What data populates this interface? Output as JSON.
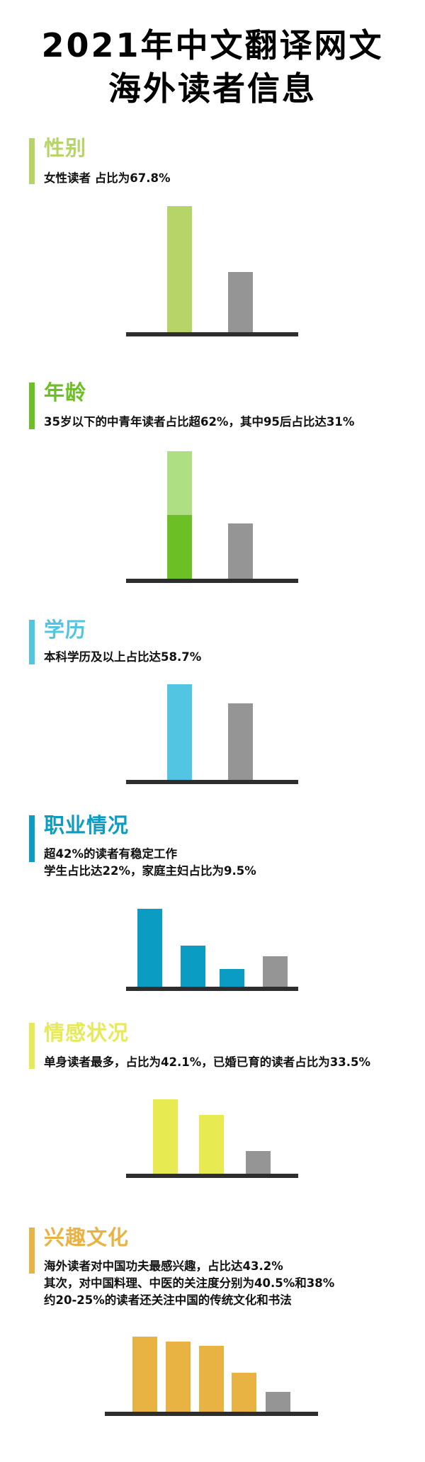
{
  "title": {
    "line1": "2021年中文翻译网文",
    "line2": "海外读者信息"
  },
  "colors": {
    "gray": "#959595",
    "baseline": "#2e2e2e"
  },
  "sections": [
    {
      "heading": "性别",
      "color": "#b6d468",
      "lines": [
        "女性读者 占比为67.8%"
      ]
    },
    {
      "heading": "年龄",
      "color": "#6cbf24",
      "lines": [
        "35岁以下的中青年读者占比超62%，其中95后占比达31%"
      ]
    },
    {
      "heading": "学历",
      "color": "#52c5e2",
      "lines": [
        "本科学历及以上占比达58.7%"
      ]
    },
    {
      "heading": "职业情况",
      "color": "#0a9cc2",
      "lines": [
        "超42%的读者有稳定工作",
        "学生占比达22%，家庭主妇占比为9.5%"
      ]
    },
    {
      "heading": "情感状况",
      "color": "#e6e95a",
      "lines": [
        "单身读者最多，占比为42.1%，已婚已育的读者占比为33.5%"
      ]
    },
    {
      "heading": "兴趣文化",
      "color": "#e8b342",
      "lines": [
        {
          "parts": [
            {
              "text": "海外读者对"
            },
            {
              "text": "中国功夫",
              "strong": true
            },
            {
              "text": "最感兴趣，占比达43.2%"
            }
          ]
        },
        "其次，对中国料理、中医的关注度分别为40.5%和38%",
        "约20-25%的读者还关注中国的传统文化和书法"
      ]
    }
  ],
  "chart_data": [
    {
      "type": "bar",
      "title": "",
      "unit": "%",
      "values": [
        67.8,
        32.2
      ],
      "colors": [
        "#b6d468",
        "#959595"
      ],
      "grid": false
    },
    {
      "type": "bar",
      "stacked_first_bar": true,
      "unit": "%",
      "values": [
        62,
        27
      ],
      "stack": {
        "lower": 31,
        "upper": 31,
        "lower_color": "#6cbf24",
        "upper_color": "#aee083"
      },
      "colors": [
        "#6cbf24",
        "#959595"
      ],
      "grid": false
    },
    {
      "type": "bar",
      "unit": "%",
      "values": [
        58.7,
        47
      ],
      "colors": [
        "#52c5e2",
        "#959595"
      ],
      "grid": false
    },
    {
      "type": "bar",
      "unit": "%",
      "values": [
        42,
        22,
        9.5,
        16.5
      ],
      "colors": [
        "#0a9cc2",
        "#0a9cc2",
        "#0a9cc2",
        "#959595"
      ],
      "grid": false
    },
    {
      "type": "bar",
      "unit": "%",
      "values": [
        42.1,
        33.5,
        13
      ],
      "colors": [
        "#e8ea52",
        "#e8ea52",
        "#959595"
      ],
      "grid": false
    },
    {
      "type": "bar",
      "unit": "%",
      "values": [
        43.2,
        40.5,
        38,
        22.5,
        11.5
      ],
      "colors": [
        "#e8b342",
        "#e8b342",
        "#e8b342",
        "#e8b342",
        "#959595"
      ],
      "grid": false
    }
  ]
}
